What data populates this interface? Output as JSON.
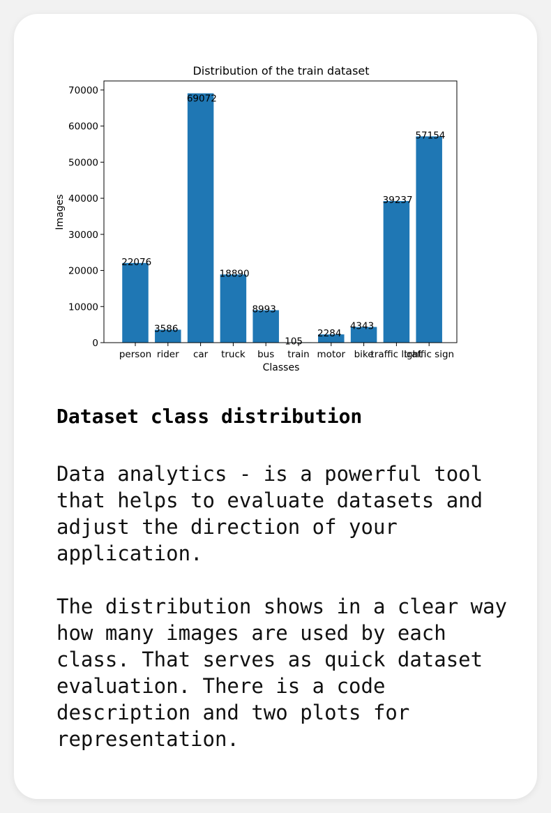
{
  "chart_data": {
    "type": "bar",
    "title": "Distribution of the train dataset",
    "xlabel": "Classes",
    "ylabel": "Images",
    "categories": [
      "person",
      "rider",
      "car",
      "truck",
      "bus",
      "train",
      "motor",
      "bike",
      "traffic light",
      "traffic sign"
    ],
    "values": [
      22076,
      3586,
      69072,
      18890,
      8993,
      105,
      2284,
      4343,
      39237,
      57154
    ],
    "ylim": [
      0,
      72500
    ],
    "yticks": [
      0,
      10000,
      20000,
      30000,
      40000,
      50000,
      60000,
      70000
    ],
    "bar_color": "#1f77b4",
    "grid": false
  },
  "article": {
    "title": "Dataset class distribution",
    "paragraph1": "Data analytics - is a powerful tool that helps to evaluate datasets and adjust the direction of your application.",
    "paragraph2": "The distribution shows in a clear way how many images are used by each class. That serves as quick dataset evaluation. There is a code description and two plots for representation."
  }
}
